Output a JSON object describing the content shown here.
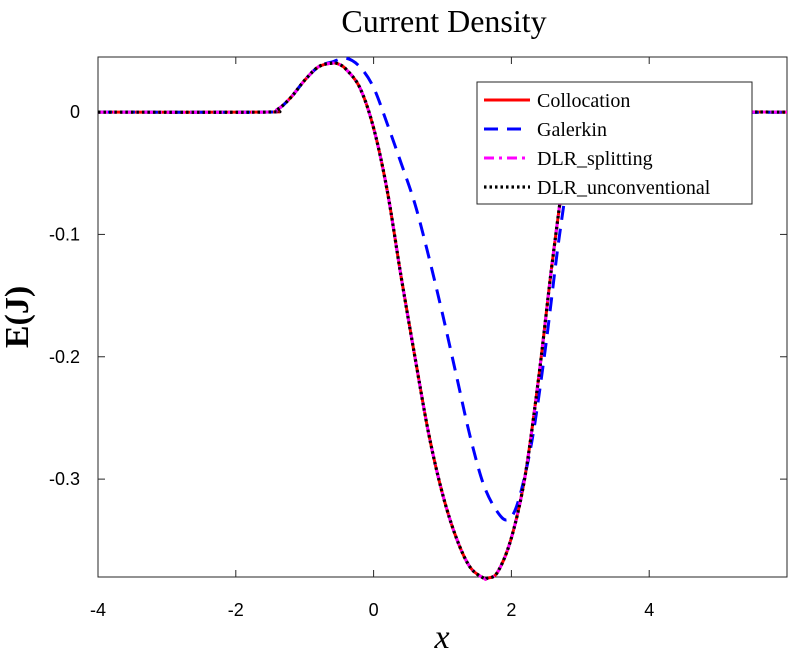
{
  "chart_data": {
    "type": "line",
    "title": "Current Density",
    "xlabel": "x",
    "ylabel": "E(J)",
    "xlim": [
      -4,
      6
    ],
    "ylim": [
      -0.38,
      0.045
    ],
    "xticks": [
      -4,
      -2,
      0,
      2,
      4
    ],
    "xtick_labels": [
      "-4",
      "-2",
      "0",
      "2",
      "4"
    ],
    "yticks": [
      0,
      -0.1,
      -0.2,
      -0.3
    ],
    "ytick_labels": [
      "0",
      "-0.1",
      "-0.2",
      "-0.3"
    ],
    "grid": false,
    "legend_position": "top-right",
    "series": [
      {
        "name": "Collocation",
        "color": "#ff0000",
        "style": "solid",
        "x": [
          -4,
          -1.6,
          -1.4,
          -1.2,
          -1.0,
          -0.8,
          -0.6,
          -0.5,
          -0.4,
          -0.2,
          0,
          0.2,
          0.4,
          0.6,
          0.8,
          1.0,
          1.2,
          1.4,
          1.6,
          1.65,
          1.8,
          2.0,
          2.2,
          2.4,
          2.6,
          2.8,
          3.0,
          3.2,
          6
        ],
        "y": [
          0,
          0,
          0.002,
          0.012,
          0.026,
          0.037,
          0.04,
          0.039,
          0.035,
          0.02,
          -0.013,
          -0.065,
          -0.135,
          -0.2,
          -0.263,
          -0.312,
          -0.348,
          -0.372,
          -0.381,
          -0.381,
          -0.376,
          -0.348,
          -0.297,
          -0.215,
          -0.12,
          -0.04,
          -0.005,
          0,
          0
        ]
      },
      {
        "name": "Galerkin",
        "color": "#0000ff",
        "style": "dashed",
        "x": [
          -4,
          -1.6,
          -1.4,
          -1.2,
          -1.0,
          -0.8,
          -0.6,
          -0.4,
          -0.2,
          0,
          0.2,
          0.4,
          0.6,
          0.8,
          1.0,
          1.2,
          1.4,
          1.6,
          1.8,
          1.95,
          2.1,
          2.3,
          2.5,
          2.7,
          2.9,
          3.1,
          6
        ],
        "y": [
          0,
          0,
          0.002,
          0.012,
          0.026,
          0.037,
          0.041,
          0.044,
          0.037,
          0.02,
          -0.01,
          -0.042,
          -0.075,
          -0.118,
          -0.165,
          -0.215,
          -0.265,
          -0.305,
          -0.327,
          -0.333,
          -0.318,
          -0.268,
          -0.19,
          -0.1,
          -0.03,
          -0.004,
          0
        ]
      },
      {
        "name": "DLR_splitting",
        "color": "#ff00ff",
        "style": "dashdot",
        "x": [
          -4,
          -1.6,
          -1.4,
          -1.2,
          -1.0,
          -0.8,
          -0.6,
          -0.5,
          -0.4,
          -0.2,
          0,
          0.2,
          0.4,
          0.6,
          0.8,
          1.0,
          1.2,
          1.4,
          1.6,
          1.65,
          1.8,
          2.0,
          2.2,
          2.4,
          2.6,
          2.8,
          3.0,
          3.2,
          6
        ],
        "y": [
          0,
          0,
          0.002,
          0.012,
          0.026,
          0.037,
          0.04,
          0.039,
          0.035,
          0.02,
          -0.013,
          -0.065,
          -0.135,
          -0.2,
          -0.263,
          -0.312,
          -0.348,
          -0.372,
          -0.381,
          -0.381,
          -0.376,
          -0.348,
          -0.297,
          -0.215,
          -0.12,
          -0.04,
          -0.005,
          0,
          0
        ]
      },
      {
        "name": "DLR_unconventional",
        "color": "#000000",
        "style": "dotted",
        "x": [
          -4,
          -1.6,
          -1.4,
          -1.2,
          -1.0,
          -0.8,
          -0.6,
          -0.5,
          -0.4,
          -0.2,
          0,
          0.2,
          0.4,
          0.6,
          0.8,
          1.0,
          1.2,
          1.4,
          1.6,
          1.65,
          1.8,
          2.0,
          2.2,
          2.4,
          2.6,
          2.8,
          3.0,
          3.2,
          6
        ],
        "y": [
          0,
          0,
          0.002,
          0.012,
          0.026,
          0.037,
          0.04,
          0.039,
          0.035,
          0.02,
          -0.013,
          -0.065,
          -0.135,
          -0.2,
          -0.263,
          -0.312,
          -0.348,
          -0.372,
          -0.381,
          -0.381,
          -0.376,
          -0.348,
          -0.297,
          -0.215,
          -0.12,
          -0.04,
          -0.005,
          0,
          0
        ]
      }
    ]
  }
}
